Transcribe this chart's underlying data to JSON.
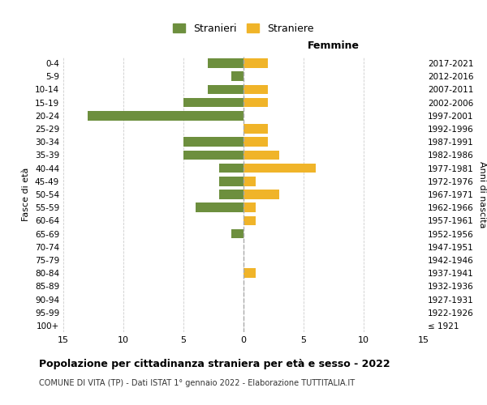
{
  "age_groups": [
    "100+",
    "95-99",
    "90-94",
    "85-89",
    "80-84",
    "75-79",
    "70-74",
    "65-69",
    "60-64",
    "55-59",
    "50-54",
    "45-49",
    "40-44",
    "35-39",
    "30-34",
    "25-29",
    "20-24",
    "15-19",
    "10-14",
    "5-9",
    "0-4"
  ],
  "birth_years": [
    "≤ 1921",
    "1922-1926",
    "1927-1931",
    "1932-1936",
    "1937-1941",
    "1942-1946",
    "1947-1951",
    "1952-1956",
    "1957-1961",
    "1962-1966",
    "1967-1971",
    "1972-1976",
    "1977-1981",
    "1982-1986",
    "1987-1991",
    "1992-1996",
    "1997-2001",
    "2002-2006",
    "2007-2011",
    "2012-2016",
    "2017-2021"
  ],
  "males": [
    0,
    0,
    0,
    0,
    0,
    0,
    0,
    1,
    0,
    4,
    2,
    2,
    2,
    5,
    5,
    0,
    13,
    5,
    3,
    1,
    3
  ],
  "females": [
    0,
    0,
    0,
    0,
    1,
    0,
    0,
    0,
    1,
    1,
    3,
    1,
    6,
    3,
    2,
    2,
    0,
    2,
    2,
    0,
    2
  ],
  "male_color": "#6d8f3e",
  "female_color": "#f0b429",
  "background_color": "#ffffff",
  "grid_color": "#cccccc",
  "center_line_color": "#aaaaaa",
  "xlim": 15,
  "title": "Popolazione per cittadinanza straniera per età e sesso - 2022",
  "subtitle": "COMUNE DI VITA (TP) - Dati ISTAT 1° gennaio 2022 - Elaborazione TUTTITALIA.IT",
  "xlabel_right": "Femmine",
  "ylabel_left": "Fasce di età",
  "ylabel_right": "Anni di nascita",
  "legend_male": "Stranieri",
  "legend_female": "Straniere"
}
